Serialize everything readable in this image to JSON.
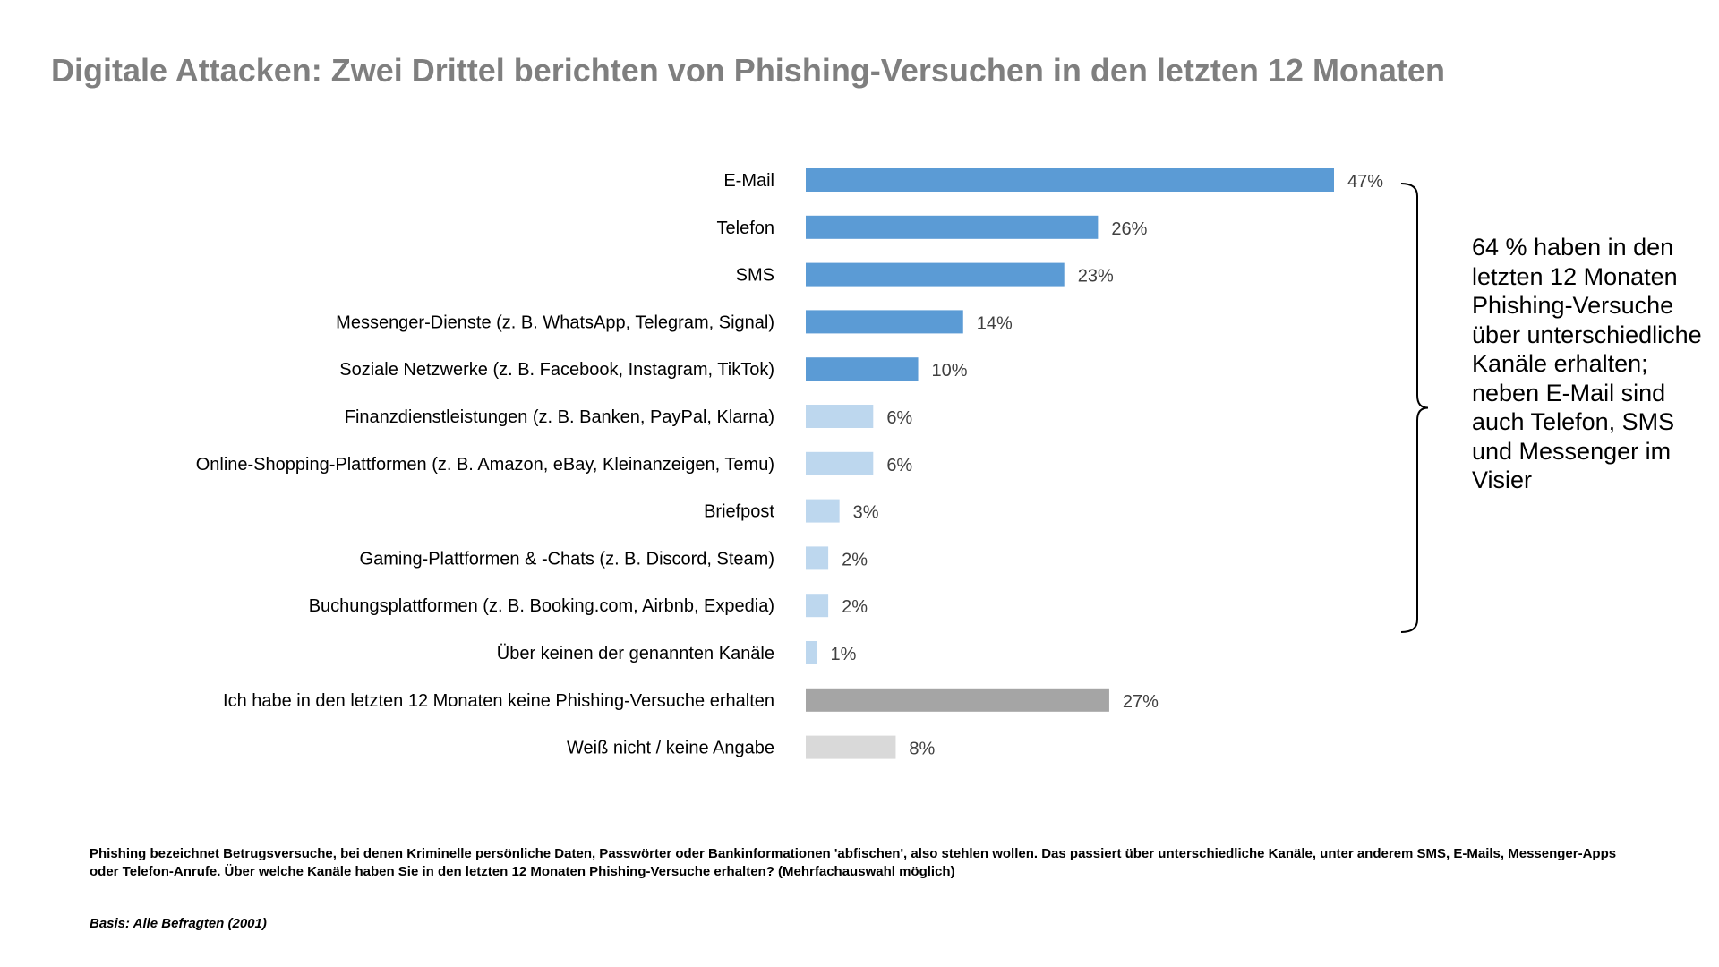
{
  "title": "Digitale Attacken: Zwei Drittel berichten von Phishing-Versuchen in den letzten 12 Monaten",
  "annotation": "64 % haben in den letzten 12 Monaten Phishing-Versuche über unterschiedliche Kanäle erhalten; neben E-Mail sind auch Telefon, SMS und Messenger im Visier",
  "footnote": "Phishing bezeichnet Betrugsversuche, bei denen Kriminelle persönliche Daten, Passwörter oder Bankinformationen 'abfischen', also stehlen wollen. Das passiert über unterschiedliche Kanäle, unter anderem SMS, E-Mails, Messenger-Apps oder Telefon-Anrufe. Über welche Kanäle haben Sie in den letzten 12 Monaten Phishing-Versuche erhalten? (Mehrfachauswahl möglich)",
  "basis": "Basis: Alle Befragten (2001)",
  "colors": {
    "dark_blue": "#5b9bd5",
    "light_blue": "#bdd7ee",
    "dark_gray": "#a5a5a5",
    "light_gray": "#d9d9d9"
  },
  "chart_data": {
    "type": "bar",
    "orientation": "horizontal",
    "title": "Digitale Attacken: Zwei Drittel berichten von Phishing-Versuchen in den letzten 12 Monaten",
    "xlabel": "",
    "ylabel": "",
    "xlim": [
      0,
      47
    ],
    "unit": "%",
    "categories": [
      "E-Mail",
      "Telefon",
      "SMS",
      "Messenger-Dienste (z. B. WhatsApp, Telegram, Signal)",
      "Soziale Netzwerke (z. B. Facebook, Instagram, TikTok)",
      "Finanzdienstleistungen (z. B. Banken, PayPal, Klarna)",
      "Online-Shopping-Plattformen (z. B. Amazon, eBay, Kleinanzeigen, Temu)",
      "Briefpost",
      "Gaming-Plattformen & -Chats (z. B. Discord, Steam)",
      "Buchungsplattformen (z. B. Booking.com, Airbnb, Expedia)",
      "Über keinen der genannten Kanäle",
      "Ich habe in den letzten 12 Monaten keine Phishing-Versuche erhalten",
      "Weiß nicht / keine Angabe"
    ],
    "values": [
      47,
      26,
      23,
      14,
      10,
      6,
      6,
      3,
      2,
      2,
      1,
      27,
      8
    ],
    "value_labels": [
      "47%",
      "26%",
      "23%",
      "14%",
      "10%",
      "6%",
      "6%",
      "3%",
      "2%",
      "2%",
      "1%",
      "27%",
      "8%"
    ],
    "bar_colors": [
      "#5b9bd5",
      "#5b9bd5",
      "#5b9bd5",
      "#5b9bd5",
      "#5b9bd5",
      "#bdd7ee",
      "#bdd7ee",
      "#bdd7ee",
      "#bdd7ee",
      "#bdd7ee",
      "#bdd7ee",
      "#a5a5a5",
      "#d9d9d9"
    ],
    "grid": false,
    "legend": "none"
  }
}
